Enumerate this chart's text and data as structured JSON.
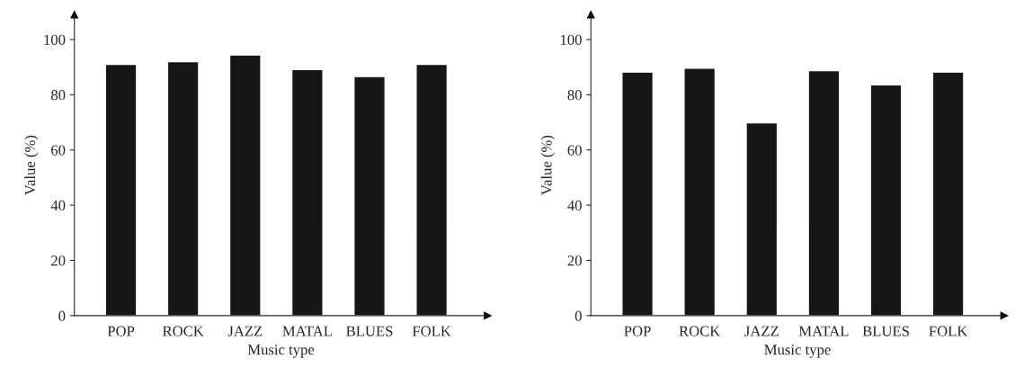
{
  "chart_data": [
    {
      "type": "bar",
      "xlabel": "Music type",
      "ylabel": "Value (%)",
      "categories": [
        "POP",
        "ROCK",
        "JAZZ",
        "MATAL",
        "BLUES",
        "FOLK"
      ],
      "series": [
        {
          "color": "#161616",
          "values": [
            91,
            92,
            94.4,
            89.1,
            86.6,
            91
          ]
        }
      ],
      "ylim": [
        0,
        109
      ],
      "yticks": [
        0,
        20,
        40,
        60,
        80,
        100
      ],
      "grid": false,
      "legend": false
    },
    {
      "type": "bar",
      "xlabel": "Music type",
      "ylabel": "Value (%)",
      "categories": [
        "POP",
        "ROCK",
        "JAZZ",
        "MATAL",
        "BLUES",
        "FOLK"
      ],
      "series": [
        {
          "color": "#161616",
          "values": [
            88.2,
            89.6,
            69.8,
            88.7,
            83.6,
            88.2
          ]
        }
      ],
      "ylim": [
        0,
        109
      ],
      "yticks": [
        0,
        20,
        40,
        60,
        80,
        100
      ],
      "grid": false,
      "legend": false
    }
  ]
}
